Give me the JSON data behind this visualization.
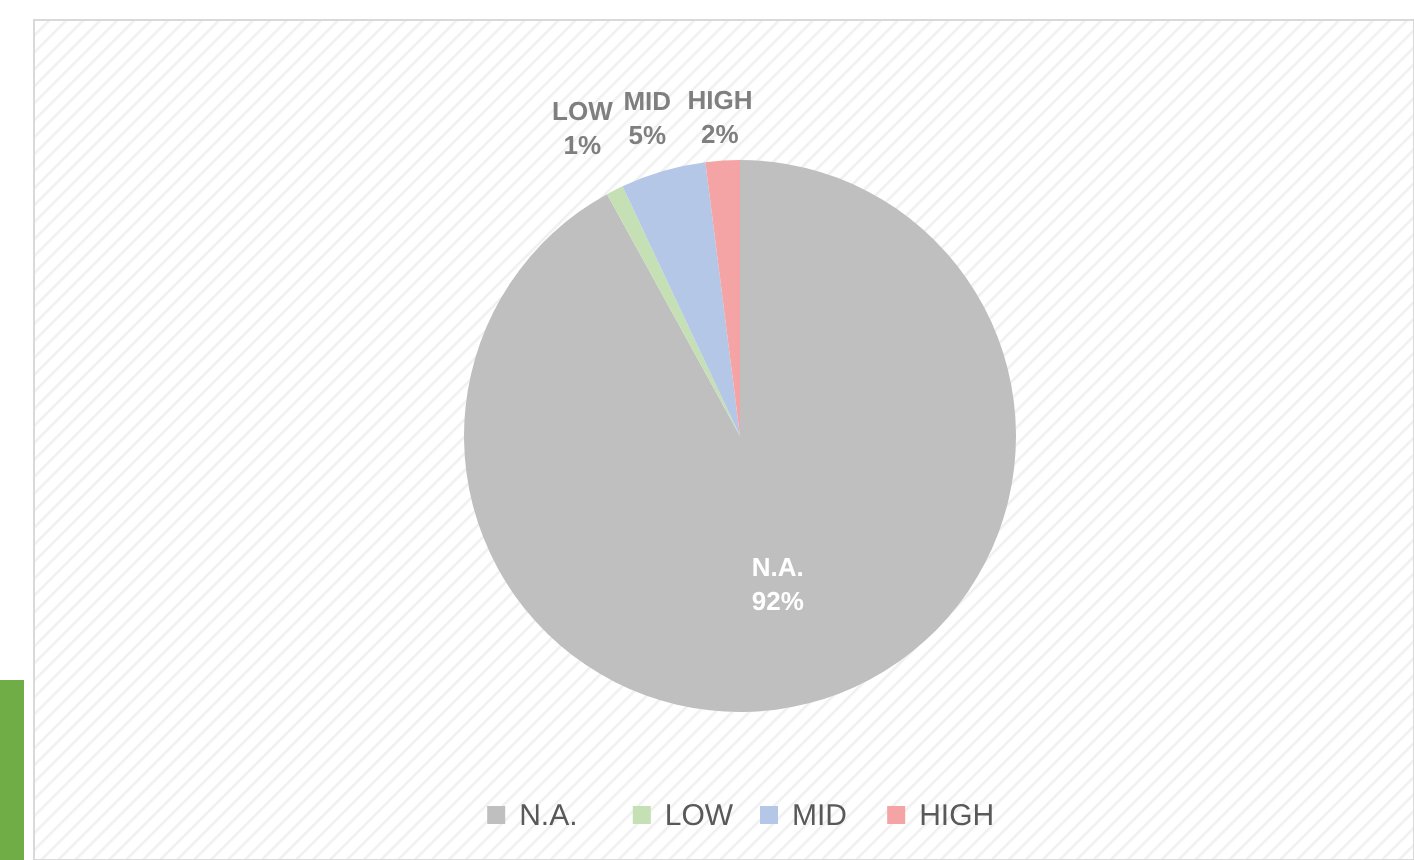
{
  "chart_data": {
    "type": "pie",
    "categories": [
      "N.A.",
      "LOW",
      "MID",
      "HIGH"
    ],
    "values": [
      92,
      1,
      5,
      2
    ],
    "colors": [
      "#bfbfbf",
      "#c5e0b4",
      "#b4c7e7",
      "#f4a4a4"
    ],
    "value_labels": [
      "92%",
      "1%",
      "5%",
      "2%"
    ],
    "legend": "bottom"
  }
}
